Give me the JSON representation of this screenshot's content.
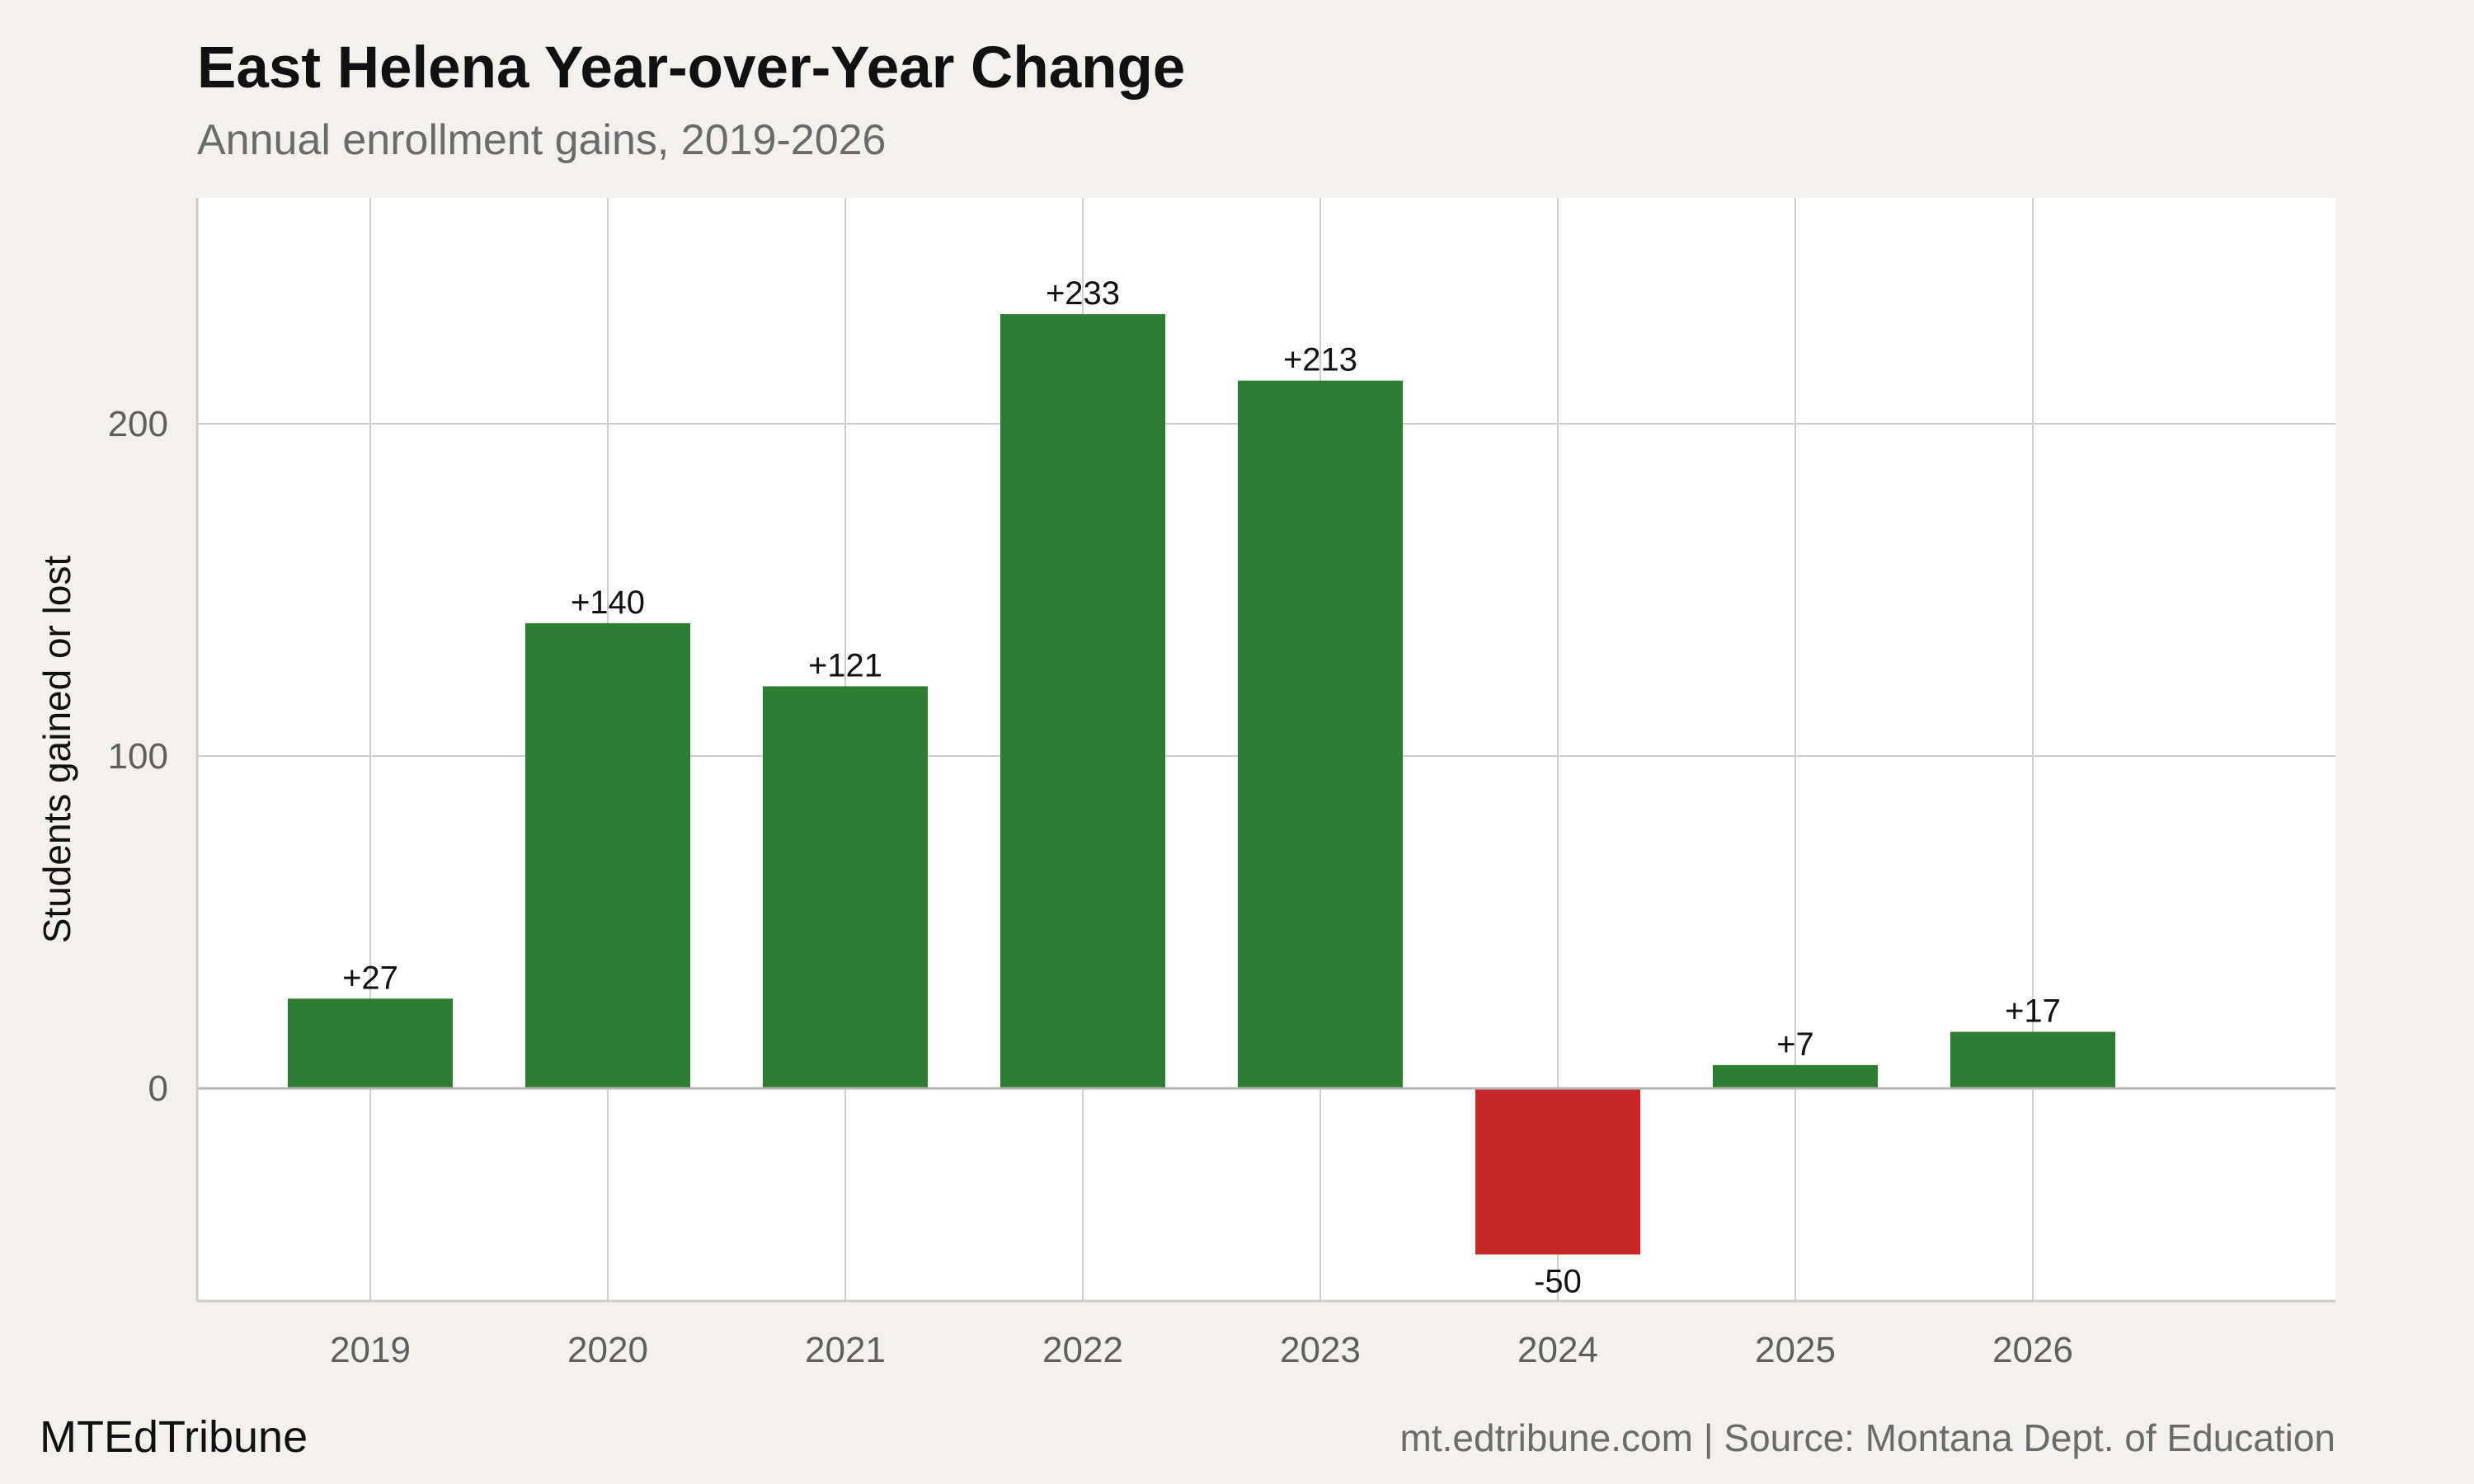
{
  "chart_data": {
    "type": "bar",
    "title": "East Helena Year-over-Year Change",
    "subtitle": "Annual enrollment gains, 2019-2026",
    "xlabel": "",
    "ylabel": "Students gained or lost",
    "categories": [
      "2019",
      "2020",
      "2021",
      "2022",
      "2023",
      "2024",
      "2025",
      "2026"
    ],
    "values": [
      27,
      140,
      121,
      233,
      213,
      -50,
      7,
      17
    ],
    "data_labels": [
      "+27",
      "+140",
      "+121",
      "+233",
      "+213",
      "-50",
      "+7",
      "+17"
    ],
    "ylim": [
      -64,
      268
    ],
    "yticks": [
      0,
      100,
      200
    ],
    "grid": true,
    "legend": "none",
    "colors": {
      "positive": "#2e7d32",
      "negative": "#c62828"
    }
  },
  "footer": {
    "brand": "MTEdTribune",
    "source": "mt.edtribune.com | Source: Montana Dept. of Education"
  },
  "style": {
    "background": "#f4f1ec",
    "panel": "#ffffff",
    "grid": "#d0cec9",
    "tick_text": "#5f5f5f"
  }
}
